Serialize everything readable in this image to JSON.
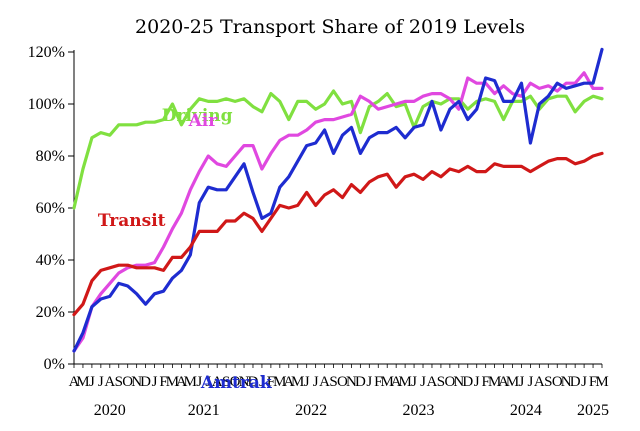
{
  "chart_data": {
    "type": "line",
    "title": "2020-25 Transport Share of 2019 Levels",
    "xlabel": "",
    "ylabel": "",
    "ylim": [
      0,
      120
    ],
    "yticks": [
      "0%",
      "20%",
      "40%",
      "60%",
      "80%",
      "100%",
      "120%"
    ],
    "grid": false,
    "legend": "inline labels",
    "month_letters": [
      "A",
      "M",
      "J",
      "J",
      "A",
      "S",
      "O",
      "N",
      "D",
      "J",
      "F",
      "M",
      "A",
      "M",
      "J",
      "J",
      "A",
      "S",
      "O",
      "N",
      "D",
      "J",
      "F",
      "M",
      "A",
      "M",
      "J",
      "J",
      "A",
      "S",
      "O",
      "N",
      "D",
      "J",
      "F",
      "M",
      "A",
      "M",
      "J",
      "J",
      "A",
      "S",
      "O",
      "N",
      "D",
      "J",
      "F",
      "M",
      "A",
      "M",
      "J",
      "J",
      "A",
      "S",
      "O",
      "N",
      "D",
      "J",
      "F",
      "M"
    ],
    "year_labels": [
      {
        "label": "2020",
        "start": 0,
        "end": 8
      },
      {
        "label": "2021",
        "start": 9,
        "end": 20
      },
      {
        "label": "2022",
        "start": 21,
        "end": 32
      },
      {
        "label": "2023",
        "start": 33,
        "end": 44
      },
      {
        "label": "2024",
        "start": 45,
        "end": 56
      },
      {
        "label": "2025",
        "start": 57,
        "end": 59
      }
    ],
    "series": [
      {
        "name": "Driving",
        "color": "#80e040",
        "values": [
          60,
          75,
          87,
          89,
          88,
          92,
          92,
          92,
          93,
          93,
          94,
          100,
          92,
          98,
          102,
          101,
          101,
          102,
          101,
          102,
          99,
          97,
          104,
          101,
          94,
          101,
          101,
          98,
          100,
          105,
          100,
          101,
          89,
          99,
          101,
          104,
          99,
          100,
          91,
          99,
          101,
          100,
          102,
          102,
          98,
          101,
          102,
          101,
          94,
          101,
          101,
          103,
          98,
          102,
          103,
          103,
          97,
          101,
          103,
          102
        ],
        "label_at": 4
      },
      {
        "name": "Air",
        "color": "#e048e0",
        "values": [
          5,
          10,
          22,
          27,
          31,
          35,
          37,
          38,
          38,
          39,
          45,
          52,
          58,
          67,
          74,
          80,
          77,
          76,
          80,
          84,
          84,
          75,
          81,
          86,
          88,
          88,
          90,
          93,
          94,
          94,
          95,
          96,
          103,
          101,
          98,
          99,
          100,
          101,
          101,
          103,
          104,
          104,
          102,
          98,
          110,
          108,
          108,
          104,
          107,
          104,
          103,
          108,
          106,
          107,
          105,
          108,
          108,
          112,
          106,
          106
        ],
        "label_at": 16
      },
      {
        "name": "Amtrak",
        "color": "#1e2cd0",
        "values": [
          5,
          12,
          22,
          25,
          26,
          31,
          30,
          27,
          23,
          27,
          28,
          33,
          36,
          42,
          62,
          68,
          67,
          67,
          72,
          77,
          66,
          56,
          58,
          68,
          72,
          78,
          84,
          85,
          90,
          81,
          88,
          91,
          81,
          87,
          89,
          89,
          91,
          87,
          91,
          92,
          101,
          90,
          98,
          101,
          94,
          98,
          110,
          109,
          101,
          101,
          108,
          85,
          100,
          103,
          108,
          106,
          107,
          108,
          108,
          121
        ],
        "label_at": 22
      },
      {
        "name": "Transit",
        "color": "#d01818",
        "values": [
          19,
          23,
          32,
          36,
          37,
          38,
          38,
          37,
          37,
          37,
          36,
          41,
          41,
          45,
          51,
          51,
          51,
          55,
          55,
          58,
          56,
          51,
          56,
          61,
          60,
          61,
          66,
          61,
          65,
          67,
          64,
          69,
          66,
          70,
          72,
          73,
          68,
          72,
          73,
          71,
          74,
          72,
          75,
          74,
          76,
          74,
          74,
          77,
          76,
          76,
          76,
          74,
          76,
          78,
          79,
          79,
          77,
          78,
          80,
          81
        ],
        "label_at": 2
      }
    ]
  }
}
